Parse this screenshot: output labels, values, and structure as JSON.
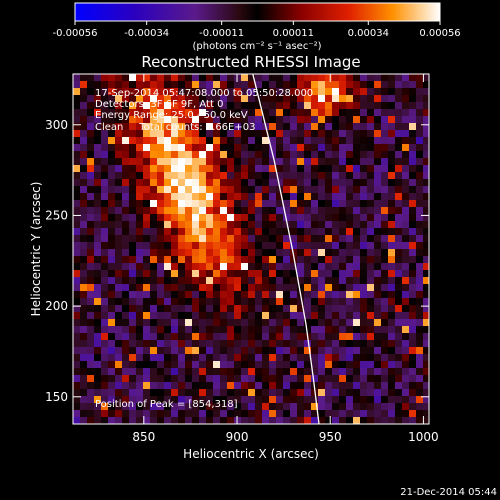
{
  "chart_data": {
    "type": "heatmap",
    "title": "Reconstructed RHESSI Image",
    "xlabel": "Heliocentric X (arcsec)",
    "ylabel": "Heliocentric Y (arcsec)",
    "xlim": [
      812,
      1003
    ],
    "ylim": [
      135,
      328
    ],
    "x_ticks": [
      850,
      900,
      950,
      1000
    ],
    "y_ticks": [
      150,
      200,
      250,
      300
    ],
    "colorbar": {
      "min": -0.00056,
      "max": 0.00056,
      "tick_values": [
        -0.00056,
        -0.00034,
        -0.00011,
        0.00011,
        0.00034,
        0.00056
      ],
      "tick_labels": [
        "-0.00056",
        "-0.00034",
        "-0.00011",
        "0.00011",
        "0.00034",
        "0.00056"
      ],
      "unit_label": "(photons cm⁻² s⁻¹ asec⁻²)"
    },
    "annotations": {
      "time_range": "17-Sep-2014 05:47:08.000 to 05:50:28.000",
      "detectors": "Detectors: 3F 6F 9F, Att 0",
      "energy_range": "Energy Range: 25.0 - 50.0 keV",
      "method": "Clean     Total counts: 1.66E+03",
      "peak": "Position of Peak = [854,318]"
    },
    "peak_position": [
      854,
      318
    ],
    "limb_curve": [
      [
        908,
        330
      ],
      [
        920,
        280
      ],
      [
        930,
        230
      ],
      [
        937,
        190
      ],
      [
        941,
        160
      ],
      [
        944,
        135
      ]
    ],
    "footer_timestamp": "21-Dec-2014 05:44"
  }
}
